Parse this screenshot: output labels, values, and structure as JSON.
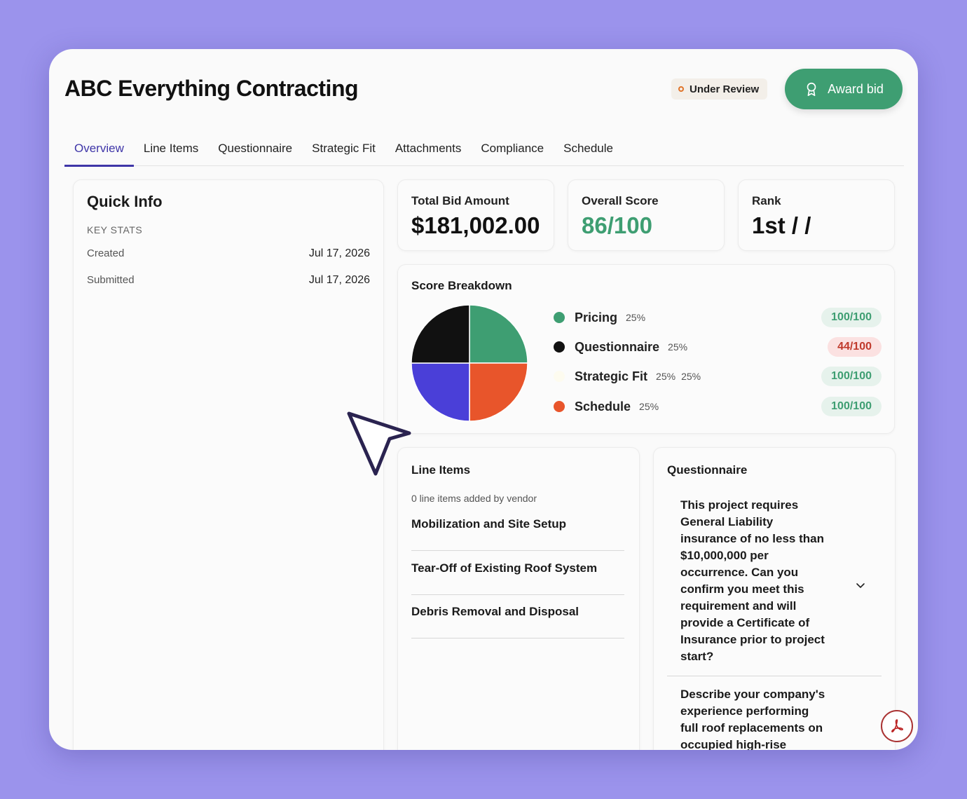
{
  "header": {
    "title": "ABC Everything Contracting",
    "status": "Under Review",
    "status_color": "#e0742a",
    "award_label": "Award bid",
    "award_icon": "award-ribbon-icon"
  },
  "tabs": [
    "Overview",
    "Line Items",
    "Questionnaire",
    "Strategic Fit",
    "Attachments",
    "Compliance",
    "Schedule"
  ],
  "active_tab": "Overview",
  "quick_info": {
    "title": "Quick Info",
    "section": "KEY STATS",
    "rows": [
      {
        "label": "Created",
        "value": "Jul 17, 2026"
      },
      {
        "label": "Submitted",
        "value": "Jul 17, 2026"
      }
    ]
  },
  "stats": {
    "total_bid_label": "Total Bid Amount",
    "total_bid_value": "$181,002.00",
    "overall_score_label": "Overall Score",
    "overall_score_value": "86/100",
    "rank_label": "Rank",
    "rank_value": "1st / /"
  },
  "score_breakdown": {
    "title": "Score Breakdown",
    "items": [
      {
        "name": "Pricing",
        "weight": "25%",
        "extra": "",
        "score": "100/100",
        "color": "#3e9e72",
        "status": "good"
      },
      {
        "name": "Questionnaire",
        "weight": "25%",
        "extra": "",
        "score": "44/100",
        "color": "#111111",
        "status": "bad"
      },
      {
        "name": "Strategic Fit",
        "weight": "25%",
        "extra": "25%",
        "score": "100/100",
        "color": "#fdfbef",
        "status": "good"
      },
      {
        "name": "Schedule",
        "weight": "25%",
        "extra": "",
        "score": "100/100",
        "color": "#e8552b",
        "status": "good"
      }
    ],
    "pie_colors": [
      "#3e9e72",
      "#e8552b",
      "#4a3fd8",
      "#111111"
    ]
  },
  "line_items": {
    "title": "Line Items",
    "subtitle": "0 line items added by vendor",
    "items": [
      "Mobilization and Site Setup",
      "Tear-Off of Existing Roof System",
      "Debris Removal and Disposal"
    ]
  },
  "questionnaire": {
    "title": "Questionnaire",
    "questions": [
      "This project requires General Liability insurance of no less than $10,000,000 per occurrence. Can you confirm you meet this requirement and will provide a Certificate of Insurance prior to project start?",
      "Describe your company's experience performing full roof replacements on occupied high-rise"
    ]
  },
  "icons": {
    "chevron": "chevron-down-icon",
    "pdf": "pdf-icon",
    "cursor": "mouse-pointer-icon"
  }
}
